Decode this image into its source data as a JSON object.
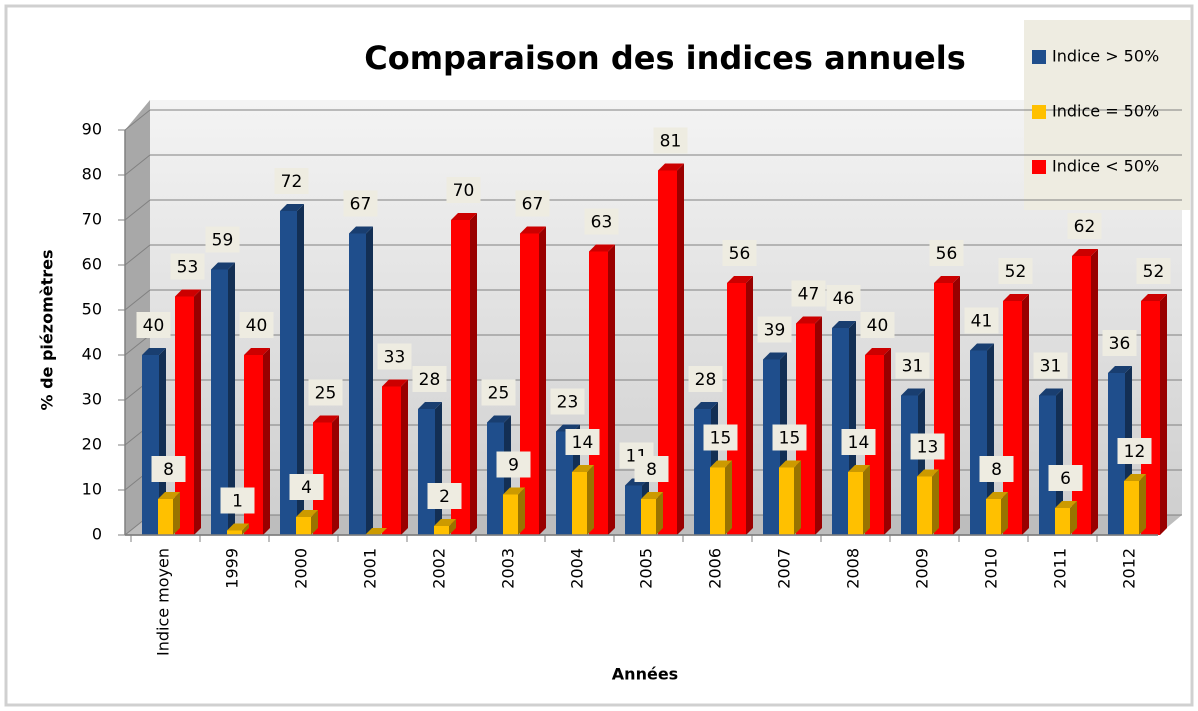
{
  "chart_data": {
    "type": "bar3d",
    "title": "Comparaison des indices annuels",
    "y_label": "% de piézomètres",
    "x_label": "Années",
    "categories": [
      "Indice moyen",
      "1999",
      "2000",
      "2001",
      "2002",
      "2003",
      "2004",
      "2005",
      "2006",
      "2007",
      "2008",
      "2009",
      "2010",
      "2011",
      "2012"
    ],
    "series": [
      {
        "name": "Indice > 50%",
        "color": "#1f4e8c",
        "values": [
          40,
          59,
          72,
          67,
          28,
          25,
          23,
          11,
          28,
          39,
          46,
          31,
          41,
          31,
          36
        ]
      },
      {
        "name": "Indice = 50%",
        "color": "#ffc000",
        "values": [
          8,
          1,
          4,
          0,
          2,
          9,
          14,
          8,
          15,
          15,
          14,
          13,
          8,
          6,
          12
        ]
      },
      {
        "name": "Indice < 50%",
        "color": "#ff0000",
        "values": [
          53,
          40,
          25,
          33,
          70,
          67,
          63,
          81,
          56,
          47,
          40,
          56,
          52,
          62,
          52
        ]
      }
    ],
    "ylim": [
      0,
      90
    ],
    "yticks": [
      0,
      10,
      20,
      30,
      40,
      50,
      60,
      70,
      80,
      90
    ],
    "grid": true,
    "legend": "top-right"
  }
}
